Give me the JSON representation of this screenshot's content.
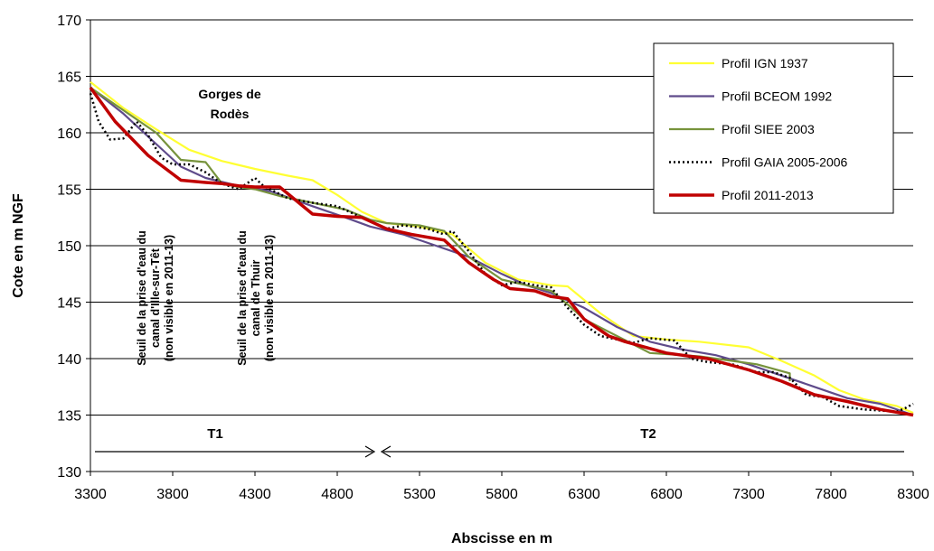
{
  "chart_data": {
    "type": "line",
    "xlabel": "Abscisse en m",
    "ylabel": "Cote en m NGF",
    "xlim": [
      3300,
      8300
    ],
    "ylim": [
      130,
      170
    ],
    "xticks": [
      "3300",
      "3800",
      "4300",
      "4800",
      "5300",
      "5800",
      "6300",
      "6800",
      "7300",
      "7800",
      "8300"
    ],
    "yticks": [
      "130",
      "135",
      "140",
      "145",
      "150",
      "155",
      "160",
      "165",
      "170"
    ],
    "grid": "horizontal",
    "legend_position": "top-right",
    "series": [
      {
        "name": "Profil IGN 1937",
        "color": "#ffff33",
        "style": "solid",
        "x": [
          3300,
          3500,
          3700,
          3900,
          4100,
          4300,
          4500,
          4650,
          4800,
          4950,
          5100,
          5300,
          5500,
          5700,
          5900,
          6100,
          6200,
          6400,
          6600,
          6800,
          7000,
          7300,
          7500,
          7700,
          7850,
          8000,
          8200,
          8300
        ],
        "values": [
          164.5,
          162.2,
          160.3,
          158.5,
          157.5,
          156.8,
          156.2,
          155.8,
          154.5,
          153.0,
          152.0,
          151.7,
          151.0,
          148.5,
          147.0,
          146.5,
          146.4,
          144.0,
          142.0,
          141.7,
          141.5,
          141.0,
          139.8,
          138.5,
          137.2,
          136.4,
          135.8,
          135.2
        ]
      },
      {
        "name": "Profil BCEOM 1992",
        "color": "#5f4b8b",
        "style": "solid",
        "x": [
          3300,
          3500,
          3700,
          3850,
          4000,
          4200,
          4400,
          4650,
          4850,
          5000,
          5200,
          5400,
          5600,
          5800,
          5950,
          6100,
          6300,
          6500,
          6700,
          6900,
          7100,
          7300,
          7500,
          7700,
          7900,
          8100,
          8300
        ],
        "values": [
          164.0,
          161.7,
          159.0,
          157.0,
          156.0,
          155.3,
          154.8,
          153.5,
          152.5,
          151.7,
          151.0,
          150.0,
          149.0,
          147.5,
          146.5,
          145.8,
          144.5,
          142.8,
          141.5,
          140.8,
          140.3,
          139.5,
          138.5,
          137.5,
          136.5,
          136.0,
          135.0
        ]
      },
      {
        "name": "Profil SIEE 2003",
        "color": "#77933c",
        "style": "solid",
        "x": [
          3300,
          3500,
          3700,
          3850,
          4000,
          4100,
          4200,
          4300,
          4450,
          4650,
          4850,
          5000,
          5100,
          5300,
          5450,
          5600,
          5800,
          5950,
          6100,
          6200,
          6300,
          6500,
          6700,
          6800,
          7000,
          7200,
          7350,
          7550,
          7550
        ],
        "values": [
          164.0,
          162.0,
          160.0,
          157.6,
          157.4,
          155.5,
          155.2,
          155.0,
          154.4,
          153.8,
          153.2,
          152.3,
          152.0,
          151.8,
          151.3,
          149.0,
          147.0,
          146.5,
          146.0,
          144.8,
          143.5,
          142.0,
          140.5,
          140.4,
          140.2,
          139.8,
          139.5,
          138.7,
          138.0
        ]
      },
      {
        "name": "Profil GAIA 2005-2006",
        "color": "#000000",
        "style": "dotted",
        "x": [
          3300,
          3350,
          3420,
          3500,
          3580,
          3650,
          3730,
          3800,
          3900,
          4000,
          4100,
          4200,
          4300,
          4350,
          4500,
          4650,
          4800,
          4950,
          5100,
          5200,
          5350,
          5450,
          5500,
          5600,
          5700,
          5800,
          5900,
          6000,
          6100,
          6200,
          6300,
          6400,
          6500,
          6600,
          6700,
          6850,
          6950,
          7050,
          7200,
          7350,
          7450,
          7550,
          7650,
          7750,
          7850,
          8000,
          8200,
          8250,
          8300
        ],
        "values": [
          163.5,
          161.0,
          159.4,
          159.5,
          161.0,
          159.8,
          157.8,
          157.2,
          157.2,
          156.5,
          155.5,
          155.0,
          156.0,
          155.3,
          154.2,
          153.8,
          153.5,
          152.5,
          151.5,
          151.8,
          151.5,
          151.0,
          151.3,
          149.5,
          147.5,
          146.5,
          146.8,
          146.5,
          146.3,
          144.5,
          143.0,
          142.0,
          141.7,
          141.4,
          141.8,
          141.6,
          140.0,
          139.7,
          139.5,
          138.8,
          138.8,
          138.3,
          136.8,
          136.6,
          135.8,
          135.5,
          135.3,
          135.6,
          136.0
        ]
      },
      {
        "name": "Profil 2011-2013",
        "color": "#c00000",
        "style": "solid",
        "x": [
          3300,
          3450,
          3650,
          3850,
          4000,
          4100,
          4200,
          4300,
          4450,
          4550,
          4650,
          4800,
          4950,
          5100,
          5250,
          5450,
          5600,
          5750,
          5850,
          6000,
          6100,
          6200,
          6300,
          6450,
          6550,
          6800,
          7050,
          7300,
          7500,
          7700,
          7900,
          8100,
          8300
        ],
        "values": [
          164.0,
          161.0,
          158.0,
          155.8,
          155.6,
          155.5,
          155.3,
          155.2,
          155.2,
          154.0,
          152.8,
          152.6,
          152.5,
          151.5,
          151.0,
          150.5,
          148.5,
          147.0,
          146.2,
          146.0,
          145.5,
          145.3,
          143.5,
          142.0,
          141.5,
          140.5,
          140.0,
          139.0,
          138.0,
          136.8,
          136.2,
          135.5,
          135.0
        ]
      }
    ],
    "annotations": {
      "gorges": [
        "Gorges de",
        "Rodès"
      ],
      "seuil_ille": [
        "Seuil de la prise d'eau du",
        "canal d'Ille-sur-Têt",
        "(non visible en 2011-13)"
      ],
      "seuil_thuir": [
        "Seuil de la prise d'eau du",
        "canal de Thuir",
        "(non visible en 2011-13)"
      ],
      "t1": "T1",
      "t2": "T2"
    }
  }
}
